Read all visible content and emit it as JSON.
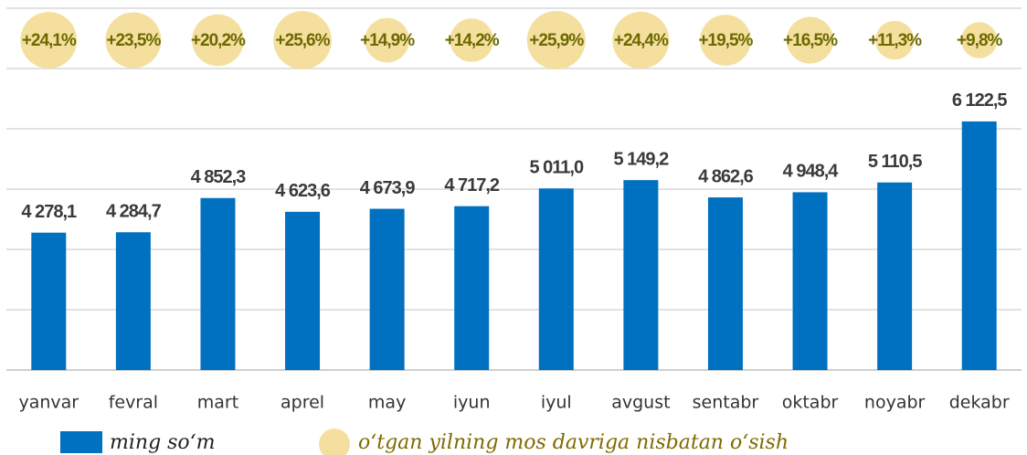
{
  "chart_data": {
    "type": "bar",
    "categories": [
      "yanvar",
      "fevral",
      "mart",
      "aprel",
      "may",
      "iyun",
      "iyul",
      "avgust",
      "sentabr",
      "oktabr",
      "noyabr",
      "dekabr"
    ],
    "series": [
      {
        "name": "ming so‘m",
        "color": "#0070c0",
        "values": [
          4278.1,
          4284.7,
          4852.3,
          4623.6,
          4673.9,
          4717.2,
          5011.0,
          5149.2,
          4862.6,
          4948.4,
          5110.5,
          6122.5
        ],
        "value_labels": [
          "4 278,1",
          "4 284,7",
          "4 852,3",
          "4 623,6",
          "4 673,9",
          "4 717,2",
          "5 011,0",
          "5 149,2",
          "4 862,6",
          "4 948,4",
          "5 110,5",
          "6 122,5"
        ]
      },
      {
        "name": "o‘tgan yilning mos davriga nisbatan o‘sish",
        "color": "#f4df9f",
        "type": "bubble",
        "values": [
          24.1,
          23.5,
          20.2,
          25.6,
          14.9,
          14.2,
          25.9,
          24.4,
          19.5,
          16.5,
          11.3,
          9.8
        ],
        "value_labels": [
          "+24,1%",
          "+23,5%",
          "+20,2%",
          "+25,6%",
          "+14,9%",
          "+14,2%",
          "+25,9%",
          "+24,4%",
          "+19,5%",
          "+16,5%",
          "+11,3%",
          "+9,8%"
        ]
      }
    ],
    "ylim": [
      2000,
      8000
    ],
    "yticks": [
      2000,
      3000,
      4000,
      5000,
      6000,
      7000,
      8000
    ],
    "grid": true
  }
}
